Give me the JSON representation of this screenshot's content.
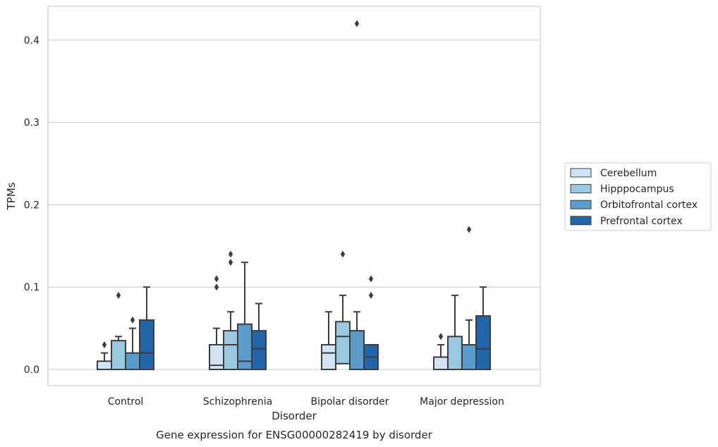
{
  "chart_data": {
    "type": "box",
    "title": "Gene expression for ENSG00000282419 by disorder",
    "xlabel": "Disorder",
    "ylabel": "TPMs",
    "ylim": [
      -0.02,
      0.44
    ],
    "yticks": [
      "0.0",
      "0.1",
      "0.2",
      "0.3",
      "0.4"
    ],
    "grid": true,
    "legend_position": "right",
    "categories": [
      "Control",
      "Schizophrenia",
      "Bipolar disorder",
      "Major depression"
    ],
    "series": [
      {
        "name": "Cerebellum",
        "color": "#d2e3f3",
        "boxes": [
          {
            "min": 0,
            "q1": 0,
            "median": 0,
            "q3": 0.01,
            "max": 0.02,
            "outliers": [
              0.03
            ]
          },
          {
            "min": 0,
            "q1": 0,
            "median": 0.005,
            "q3": 0.03,
            "max": 0.05,
            "outliers": [
              0.1,
              0.11
            ]
          },
          {
            "min": 0,
            "q1": 0,
            "median": 0.02,
            "q3": 0.03,
            "max": 0.07,
            "outliers": []
          },
          {
            "min": 0,
            "q1": 0,
            "median": 0,
            "q3": 0.015,
            "max": 0.03,
            "outliers": [
              0.04
            ]
          }
        ]
      },
      {
        "name": "Hipppocampus",
        "color": "#9ac8e0",
        "boxes": [
          {
            "min": 0,
            "q1": 0,
            "median": 0,
            "q3": 0.035,
            "max": 0.04,
            "outliers": [
              0.09
            ]
          },
          {
            "min": 0,
            "q1": 0,
            "median": 0.03,
            "q3": 0.047,
            "max": 0.07,
            "outliers": [
              0.13,
              0.14
            ]
          },
          {
            "min": 0,
            "q1": 0.007,
            "median": 0.04,
            "q3": 0.058,
            "max": 0.09,
            "outliers": [
              0.14
            ]
          },
          {
            "min": 0,
            "q1": 0,
            "median": 0,
            "q3": 0.04,
            "max": 0.09,
            "outliers": []
          }
        ]
      },
      {
        "name": "Orbitofrontal cortex",
        "color": "#5a9ccb",
        "boxes": [
          {
            "min": 0,
            "q1": 0,
            "median": 0,
            "q3": 0.02,
            "max": 0.05,
            "outliers": [
              0.06
            ]
          },
          {
            "min": 0,
            "q1": 0,
            "median": 0.01,
            "q3": 0.055,
            "max": 0.13,
            "outliers": []
          },
          {
            "min": 0,
            "q1": 0,
            "median": 0,
            "q3": 0.047,
            "max": 0.07,
            "outliers": [
              0.42
            ]
          },
          {
            "min": 0,
            "q1": 0,
            "median": 0,
            "q3": 0.03,
            "max": 0.06,
            "outliers": [
              0.17
            ]
          }
        ]
      },
      {
        "name": "Prefrontal cortex",
        "color": "#2265a8",
        "boxes": [
          {
            "min": 0,
            "q1": 0,
            "median": 0.02,
            "q3": 0.06,
            "max": 0.1,
            "outliers": []
          },
          {
            "min": 0,
            "q1": 0,
            "median": 0.025,
            "q3": 0.047,
            "max": 0.08,
            "outliers": []
          },
          {
            "min": 0,
            "q1": 0,
            "median": 0.015,
            "q3": 0.03,
            "max": 0.03,
            "outliers": [
              0.09,
              0.11
            ]
          },
          {
            "min": 0,
            "q1": 0,
            "median": 0.025,
            "q3": 0.065,
            "max": 0.1,
            "outliers": []
          }
        ]
      }
    ]
  },
  "colors": {
    "grid": "#cccccc",
    "frame": "#cccccc",
    "box_edge": "#3d3d3d",
    "text": "#262626"
  }
}
